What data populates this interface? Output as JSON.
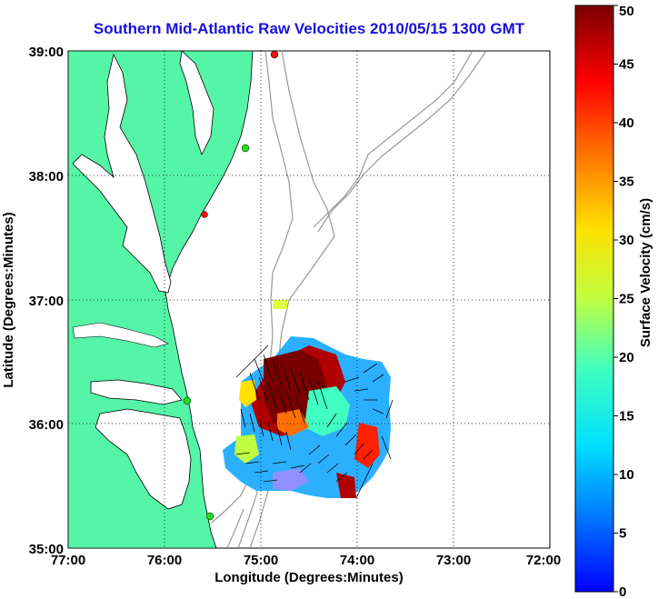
{
  "title": "Southern Mid-Atlantic Raw Velocities 2010/05/15 1300 GMT",
  "x_axis": {
    "label": "Longitude (Degrees:Minutes)",
    "ticks": [
      "77:00",
      "76:00",
      "75:00",
      "74:00",
      "73:00",
      "72:00"
    ]
  },
  "y_axis": {
    "label": "Latitude (Degrees:Minutes)",
    "ticks": [
      "39:00",
      "38:00",
      "37:00",
      "36:00",
      "35:00"
    ]
  },
  "colorbar": {
    "label": "Surface Velocity (cm/s)",
    "min": 0,
    "max": 50,
    "ticks": [
      "50",
      "45",
      "40",
      "35",
      "30",
      "25",
      "20",
      "15",
      "10",
      "5",
      "0"
    ]
  },
  "colors": {
    "title": "#1a10e0",
    "land": "#55f5a8",
    "bathymetry": "#999999",
    "station_green": "#22dd22",
    "station_red": "#ee1111"
  }
}
